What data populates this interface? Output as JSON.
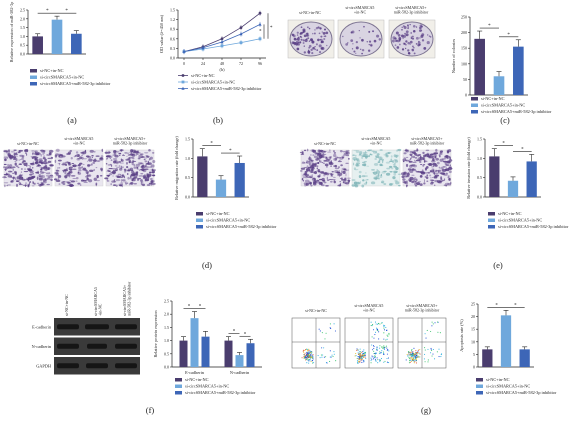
{
  "colors": {
    "nc": "#4a3d6e",
    "si": "#6fa8dc",
    "inh": "#3d66b7",
    "blot_bg": "#3a3a3a",
    "band": "#151515",
    "purple_stain": "#5a3f86",
    "teal_stain": "#7fb5b8"
  },
  "panel_labels": [
    "(a)",
    "(b)",
    "(c)",
    "(d)",
    "(e)",
    "(f)",
    "(g)"
  ],
  "legend": {
    "nc": "si-NC+in-NC",
    "si": "si-circSMARCA5+in-NC",
    "inh": "si-circSMARCA5+miR-582-3p inhibitor"
  },
  "image_labels": {
    "c": [
      "si-NC+in-NC",
      "si-circSMARCA5\n+in-NC",
      "si-circSMARCA5+\nmiR-582-3p inhibitor"
    ],
    "d": [
      "si-NC+in-NC",
      "si-circSMARCA5\n+in-NC",
      "si-circSMARCA5+\nmiR-582-3p inhibitor"
    ],
    "e": [
      "si-NC+in-NC",
      "si-circSMARCA5\n+in-NC",
      "si-circSMARCA5+\nmiR-582-3p inhibitor"
    ],
    "g": [
      "si-NC+in-NC",
      "si-circSMARCA5\n+in-NC",
      "si-circSMARCA5+\nmiR-582-3p inhibitor"
    ]
  },
  "blot": {
    "columns": [
      "si-NC+in-NC",
      "si-circSMARCA5\n+in-NC",
      "si-circSMARCA5+\nmiR-582-3p inhibitor"
    ],
    "rows": [
      "E-cadherin",
      "N-cadherin",
      "GAPDH"
    ]
  },
  "chart_data": [
    {
      "id": "a",
      "type": "bar",
      "categories": [
        "si-NC+in-NC",
        "si-circSMARCA5+in-NC",
        "si-circSMARCA5+miR-582-3p inhibitor"
      ],
      "values": [
        1.0,
        1.95,
        1.15
      ],
      "errors": [
        0.15,
        0.2,
        0.18
      ],
      "ylabel": "Relative expression of miR-582-3p",
      "ylim": [
        0,
        2.5
      ],
      "yticks": [
        0.0,
        0.5,
        1.0,
        1.5,
        2.0,
        2.5
      ],
      "ytick_labels": [
        "0.0",
        "0.5",
        "1.0",
        "1.5",
        "2.0",
        "2.5"
      ],
      "significance": [
        "*",
        "*"
      ]
    },
    {
      "id": "b",
      "type": "line",
      "x": [
        0,
        24,
        48,
        72,
        96
      ],
      "xtick_labels": [
        "0",
        "24",
        "48",
        "72",
        "96"
      ],
      "xlabel": "(h)",
      "ylabel": "OD value (λ=450 nm)",
      "ylim": [
        0,
        1.5
      ],
      "yticks": [
        0.0,
        0.3,
        0.6,
        0.9,
        1.2,
        1.5
      ],
      "ytick_labels": [
        "0.0",
        "0.3",
        "0.6",
        "0.9",
        "1.2",
        "1.5"
      ],
      "series": [
        {
          "name": "si-NC+in-NC",
          "values": [
            0.2,
            0.35,
            0.6,
            0.95,
            1.4
          ]
        },
        {
          "name": "si-circSMARCA5+in-NC",
          "values": [
            0.2,
            0.28,
            0.38,
            0.48,
            0.6
          ]
        },
        {
          "name": "si-circSMARCA5+miR-582-3p inhibitor",
          "values": [
            0.2,
            0.32,
            0.5,
            0.75,
            1.05
          ]
        }
      ],
      "significance": [
        "*",
        "*"
      ]
    },
    {
      "id": "c",
      "type": "bar",
      "categories": [
        "si-NC+in-NC",
        "si-circSMARCA5+in-NC",
        "si-circSMARCA5+miR-582-3p inhibitor"
      ],
      "values": [
        180,
        60,
        155
      ],
      "errors": [
        25,
        15,
        22
      ],
      "ylabel": "Number of colonies",
      "ylim": [
        0,
        250
      ],
      "yticks": [
        0,
        50,
        100,
        150,
        200,
        250
      ],
      "ytick_labels": [
        "0",
        "50",
        "100",
        "150",
        "200",
        "250"
      ],
      "significance": [
        "*",
        "*"
      ]
    },
    {
      "id": "d",
      "type": "bar",
      "categories": [
        "si-NC+in-NC",
        "si-circSMARCA5+in-NC",
        "si-circSMARCA5+miR-582-3p inhibitor"
      ],
      "values": [
        1.05,
        0.45,
        0.88
      ],
      "errors": [
        0.2,
        0.1,
        0.18
      ],
      "ylabel": "Relative migration rate (fold change)",
      "ylim": [
        0,
        1.5
      ],
      "yticks": [
        0.0,
        0.5,
        1.0,
        1.5
      ],
      "ytick_labels": [
        "0.0",
        "0.5",
        "1.0",
        "1.5"
      ],
      "significance": [
        "*",
        "*"
      ]
    },
    {
      "id": "e",
      "type": "bar",
      "categories": [
        "si-NC+in-NC",
        "si-circSMARCA5+in-NC",
        "si-circSMARCA5+miR-582-3p inhibitor"
      ],
      "values": [
        1.05,
        0.42,
        0.92
      ],
      "errors": [
        0.2,
        0.1,
        0.18
      ],
      "ylabel": "Relative invasion rate (fold change)",
      "ylim": [
        0,
        1.5
      ],
      "yticks": [
        0.0,
        0.5,
        1.0,
        1.5
      ],
      "ytick_labels": [
        "0.0",
        "0.5",
        "1.0",
        "1.5"
      ],
      "significance": [
        "*",
        "*"
      ]
    },
    {
      "id": "f",
      "type": "bar",
      "categories": [
        "E-cadherin",
        "N-cadherin"
      ],
      "series": [
        {
          "name": "si-NC+in-NC",
          "values": [
            1.0,
            1.0
          ],
          "errors": [
            0.15,
            0.15
          ]
        },
        {
          "name": "si-circSMARCA5+in-NC",
          "values": [
            1.85,
            0.45
          ],
          "errors": [
            0.25,
            0.1
          ]
        },
        {
          "name": "si-circSMARCA5+miR-582-3p inhibitor",
          "values": [
            1.15,
            0.9
          ],
          "errors": [
            0.2,
            0.15
          ]
        }
      ],
      "ylabel": "Relative protein expression",
      "ylim": [
        0,
        2.5
      ],
      "yticks": [
        0.0,
        0.5,
        1.0,
        1.5,
        2.0,
        2.5
      ],
      "ytick_labels": [
        "0.0",
        "0.5",
        "1.0",
        "1.5",
        "2.0",
        "2.5"
      ],
      "significance": [
        "*",
        "*",
        "*",
        "*"
      ]
    },
    {
      "id": "g",
      "type": "bar",
      "categories": [
        "si-NC+in-NC",
        "si-circSMARCA5+in-NC",
        "si-circSMARCA5+miR-582-3p inhibitor"
      ],
      "values": [
        7,
        20.5,
        7
      ],
      "errors": [
        1,
        2,
        1
      ],
      "ylabel": "Apoptosis rate (%)",
      "ylim": [
        0,
        25
      ],
      "yticks": [
        0,
        5,
        10,
        15,
        20,
        25
      ],
      "ytick_labels": [
        "0",
        "5",
        "10",
        "15",
        "20",
        "25"
      ],
      "significance": [
        "*",
        "*"
      ]
    }
  ]
}
